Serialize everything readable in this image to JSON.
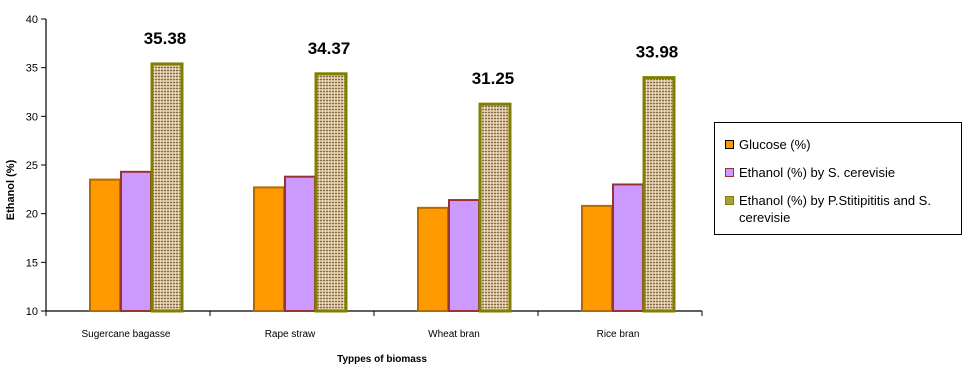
{
  "chart_data": {
    "type": "bar",
    "title": "",
    "xlabel": "Typpes of biomass",
    "ylabel": "Ethanol (%)",
    "ylim": [
      10,
      40
    ],
    "yticks": [
      10,
      15,
      20,
      25,
      30,
      35,
      40
    ],
    "categories": [
      "Sugercane bagasse",
      "Rape straw",
      "Wheat bran",
      "Rice bran"
    ],
    "series": [
      {
        "name": "Glucose (%)",
        "values": [
          23.5,
          22.7,
          20.6,
          20.8
        ],
        "color": "#ff9900",
        "border": "#b36b00"
      },
      {
        "name": "Ethanol (%) by S. cerevisie",
        "values": [
          24.3,
          23.8,
          21.4,
          23.0
        ],
        "color": "#cc99ff",
        "border": "#993333"
      },
      {
        "name": "Ethanol (%) by P.Stitipititis and S. cerevisie",
        "values": [
          35.38,
          34.37,
          31.25,
          33.98
        ],
        "color": "#c8ad86",
        "border": "#808000"
      }
    ],
    "data_labels": [
      "35.38",
      "34.37",
      "31.25",
      "33.98"
    ],
    "grid": false,
    "legend_position": "right"
  }
}
